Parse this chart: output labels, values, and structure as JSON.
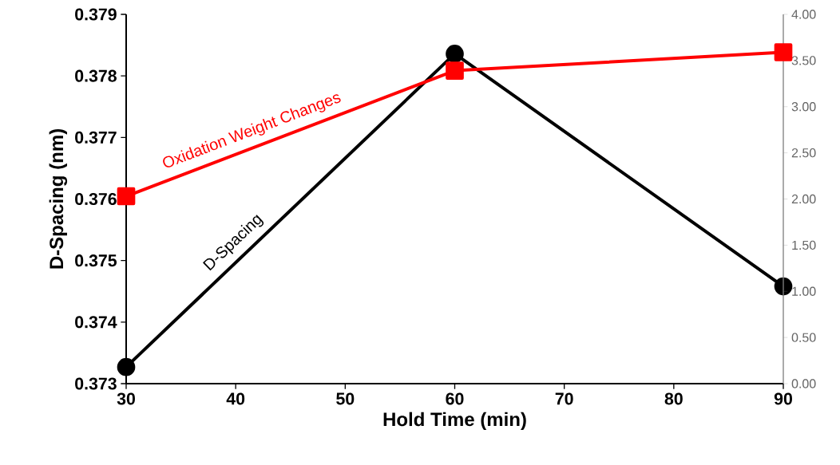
{
  "chart_data": {
    "type": "line",
    "x": [
      30,
      60,
      90
    ],
    "series": [
      {
        "name": "D-Spacing",
        "color": "#000000",
        "marker": "circle",
        "values": [
          0.37327,
          0.37836,
          0.37458
        ]
      },
      {
        "name": "Oxidation Weight Changes",
        "color": "#ff0000",
        "marker": "square",
        "axis": "y2",
        "values": [
          2.03,
          3.39,
          3.59
        ]
      }
    ],
    "xlabel": "Hold Time (min)",
    "ylabel": "D-Spacing (nm)",
    "xlim": [
      30,
      90
    ],
    "xticks": [
      30,
      40,
      50,
      60,
      70,
      80,
      90
    ],
    "ylim": [
      0.373,
      0.379
    ],
    "yticks": [
      0.373,
      0.374,
      0.375,
      0.376,
      0.377,
      0.378,
      0.379
    ],
    "y2lim": [
      0,
      4
    ],
    "y2ticks": [
      {
        "value": 0,
        "label": "0.00"
      },
      {
        "value": 0.5,
        "label": "0.50"
      },
      {
        "value": 1,
        "label": "1.00"
      },
      {
        "value": 1.5,
        "label": "1.50"
      },
      {
        "value": 2,
        "label": "2.00"
      },
      {
        "value": 2.5,
        "label": "2.50"
      },
      {
        "value": 3,
        "label": "3.00"
      },
      {
        "value": 3.5,
        "label": "3.50"
      },
      {
        "value": 4,
        "label": "4.00"
      }
    ]
  }
}
